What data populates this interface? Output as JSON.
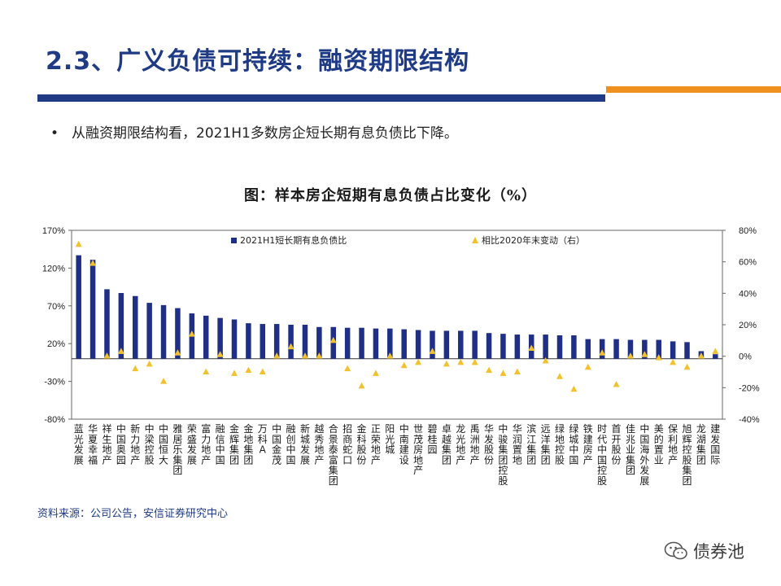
{
  "slide": {
    "title": "2.3、广义负债可持续：融资期限结构",
    "bullet_mark": "•",
    "bullet_text": "从融资期限结构看，2021H1多数房企短长期有息负债比下降。",
    "figure_title": "图：样本房企短期有息负债占比变化（%）",
    "source": "资料来源：公司公告，安信证券研究中心",
    "logo_text": "债券池"
  },
  "colors": {
    "primary": "#1f3b86",
    "accent": "#f0901e",
    "bar": "#1f2f86",
    "marker": "#f2c12e"
  },
  "chart_data": {
    "type": "bar",
    "title": "图：样本房企短期有息负债占比变化（%）",
    "categories": [
      "蓝光发展",
      "华夏幸福",
      "祥生地产",
      "中国奥园",
      "新力地产",
      "中梁控股",
      "中国恒大",
      "雅居乐集团",
      "荣盛发展",
      "富力地产",
      "融信中国",
      "金辉集团",
      "金地集团",
      "万科A",
      "中国金茂",
      "融创中国",
      "新城发展",
      "越秀地产",
      "合景泰富集团",
      "招商蛇口",
      "金科股份",
      "正荣地产",
      "阳光城",
      "中南建设",
      "世茂房地产",
      "碧桂园",
      "卓越集团",
      "龙光地产",
      "禹洲地产",
      "华发股份",
      "中骏集团控股",
      "华润置地",
      "滨江集团",
      "远洋集团",
      "绿地控股",
      "绿城中国",
      "铁建房产",
      "时代中国控股",
      "首开股份",
      "佳兆业集团",
      "中国海外发展",
      "美的置业",
      "保利地产",
      "旭辉控股集团",
      "龙湖集团",
      "建发国际"
    ],
    "series": [
      {
        "name": "2021H1短长期有息负债比",
        "axis": "left",
        "render": "bar",
        "values": [
          137,
          131,
          92,
          87,
          83,
          74,
          71,
          67,
          60,
          57,
          54,
          52,
          47,
          46,
          46,
          45,
          45,
          42,
          42,
          41,
          41,
          40,
          40,
          39,
          38,
          37,
          37,
          37,
          37,
          34,
          33,
          32,
          32,
          32,
          31,
          31,
          26,
          26,
          26,
          25,
          25,
          25,
          23,
          22,
          10,
          6
        ]
      },
      {
        "name": "相比2020年末变动（右）",
        "axis": "right",
        "render": "marker",
        "values": [
          71,
          59,
          0,
          3,
          -8,
          -5,
          -16,
          2,
          14,
          -10,
          1,
          -11,
          -9,
          -10,
          0,
          6,
          0,
          0,
          10,
          -8,
          -19,
          -11,
          0,
          -6,
          -4,
          3,
          -5,
          -4,
          -4,
          -9,
          -11,
          -10,
          5,
          -3,
          -13,
          -21,
          -7,
          2,
          -18,
          0,
          1,
          -1,
          -4,
          -7,
          0,
          3
        ]
      }
    ],
    "left_axis": {
      "ylim": [
        -80,
        170
      ],
      "ticks": [
        -80,
        -30,
        20,
        70,
        120,
        170
      ],
      "tick_labels": [
        "-80%",
        "-30%",
        "20%",
        "70%",
        "120%",
        "170%"
      ]
    },
    "right_axis": {
      "ylim": [
        -40,
        80
      ],
      "ticks": [
        -40,
        -20,
        0,
        20,
        40,
        60,
        80
      ],
      "tick_labels": [
        "-40%",
        "-20%",
        "0%",
        "20%",
        "40%",
        "60%",
        "80%"
      ]
    },
    "legend": {
      "placement": "top"
    }
  }
}
